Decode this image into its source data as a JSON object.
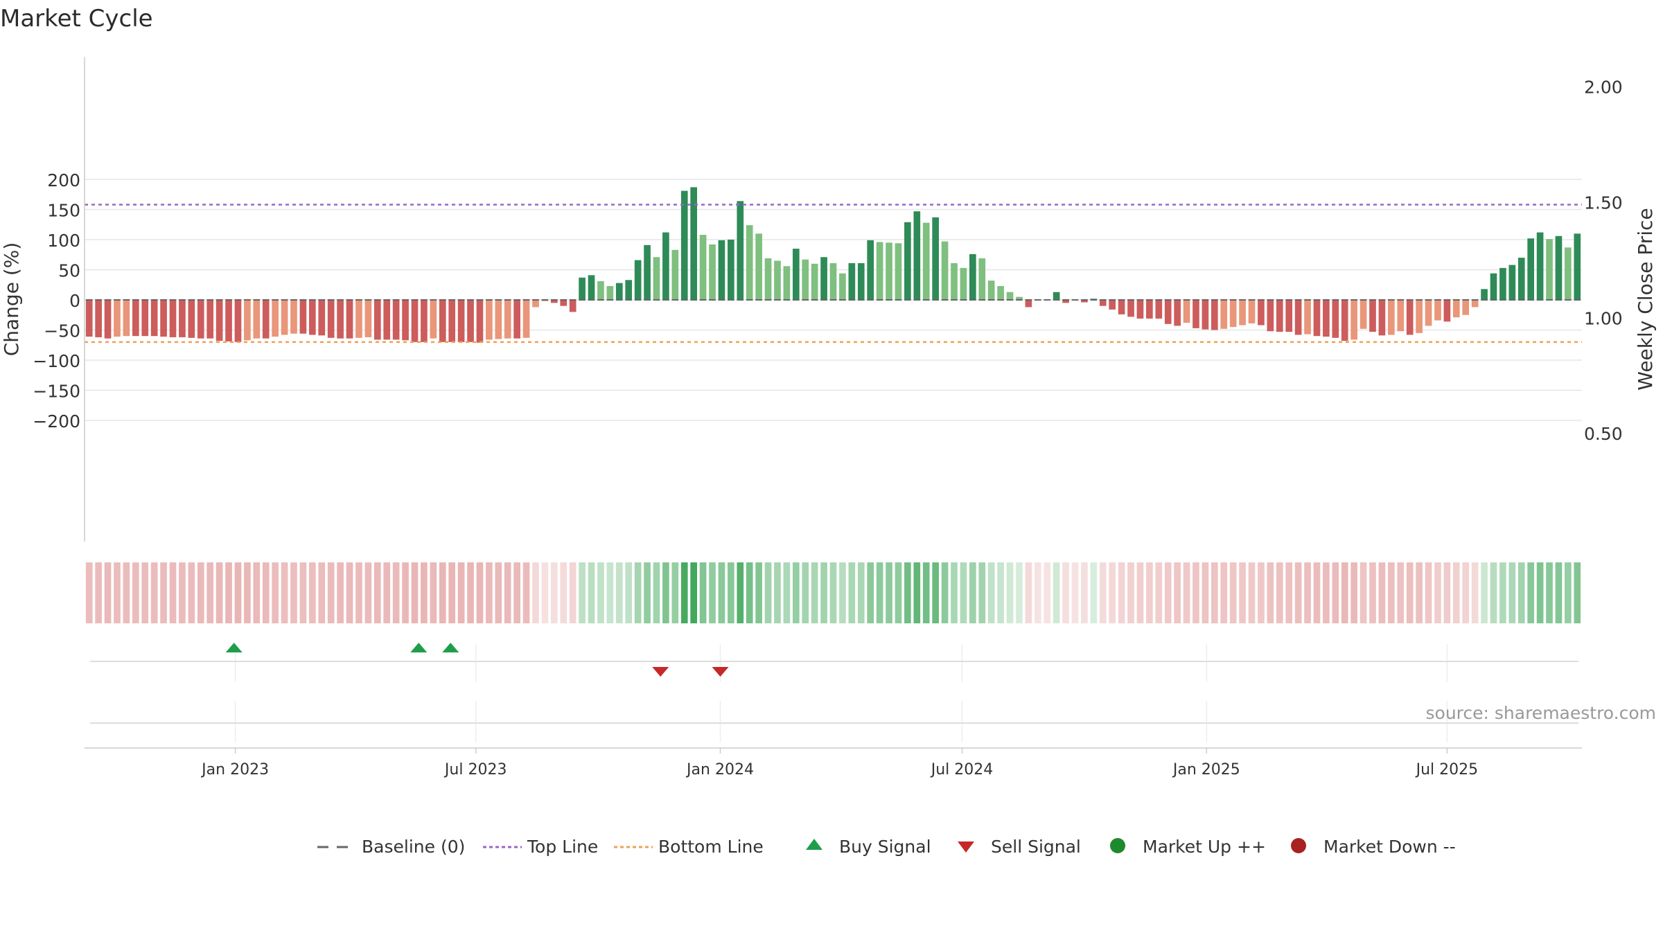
{
  "chart_data": {
    "type": "bar",
    "title": "Market Cycle",
    "ylabel": "Change (%)",
    "y2label": "Weekly Close Price",
    "ylim": [
      -200,
      200
    ],
    "yticks": [
      200,
      150,
      100,
      50,
      0,
      -50,
      -100,
      -150,
      -200
    ],
    "ytick_labels": [
      "200",
      "150",
      "100",
      "50",
      "0",
      "−50",
      "−100",
      "−150",
      "−200"
    ],
    "y2lim": [
      0.0,
      2.08
    ],
    "y2ticks": [
      2.0,
      1.5,
      1.0,
      0.5
    ],
    "y2tick_labels": [
      "2.00",
      "1.50",
      "1.00",
      "0.50"
    ],
    "x_start": "2022-09-13",
    "week_days": 7,
    "xticks": [
      {
        "date": "2023-01-01",
        "label": "Jan 2023"
      },
      {
        "date": "2023-07-01",
        "label": "Jul 2023"
      },
      {
        "date": "2024-01-01",
        "label": "Jan 2024"
      },
      {
        "date": "2024-07-01",
        "label": "Jul 2024"
      },
      {
        "date": "2025-01-01",
        "label": "Jan 2025"
      },
      {
        "date": "2025-07-01",
        "label": "Jul 2025"
      }
    ],
    "top_line": 158,
    "bottom_line": -70,
    "values": [
      -61,
      -62,
      -64,
      -61,
      -60,
      -60,
      -60,
      -60,
      -61,
      -62,
      -62,
      -63,
      -64,
      -64,
      -68,
      -69,
      -70,
      -67,
      -64,
      -64,
      -61,
      -58,
      -56,
      -56,
      -58,
      -59,
      -63,
      -64,
      -64,
      -63,
      -62,
      -66,
      -66,
      -66,
      -67,
      -70,
      -70,
      -64,
      -70,
      -70,
      -70,
      -70,
      -71,
      -66,
      -65,
      -64,
      -64,
      -63,
      -12,
      -2,
      -5,
      -10,
      -20,
      37,
      41,
      31,
      23,
      28,
      33,
      66,
      91,
      71,
      112,
      83,
      181,
      187,
      108,
      92,
      99,
      100,
      164,
      124,
      110,
      69,
      65,
      56,
      85,
      67,
      60,
      71,
      61,
      44,
      61,
      61,
      99,
      96,
      95,
      94,
      129,
      147,
      128,
      137,
      97,
      61,
      53,
      76,
      69,
      32,
      23,
      13,
      5,
      -12,
      -1,
      -1,
      13,
      -5,
      -1,
      -4,
      2,
      -10,
      -16,
      -24,
      -28,
      -31,
      -31,
      -31,
      -40,
      -43,
      -38,
      -47,
      -49,
      -50,
      -48,
      -45,
      -42,
      -39,
      -42,
      -52,
      -53,
      -53,
      -58,
      -57,
      -60,
      -61,
      -63,
      -68,
      -66,
      -48,
      -53,
      -59,
      -58,
      -52,
      -58,
      -55,
      -43,
      -34,
      -36,
      -29,
      -25,
      -12,
      18,
      44,
      53,
      58,
      70,
      102,
      112,
      101,
      106,
      87,
      110
    ],
    "bar_colors": {
      "strong_down": "#cd5c5c",
      "mild_down": "#e9967a",
      "strong_up": "#2e8b57",
      "mild_up": "#7fbf7f"
    },
    "close_color": "#555555",
    "signals": {
      "buy": [
        {
          "date": "2022-12-31",
          "label": "Buy Signal"
        },
        {
          "date": "2023-05-19",
          "label": "Buy Signal"
        },
        {
          "date": "2023-06-12",
          "label": "Buy Signal"
        }
      ],
      "sell": [
        {
          "date": "2023-11-17",
          "label": "Sell Signal"
        },
        {
          "date": "2024-01-01",
          "label": "Sell Signal"
        }
      ],
      "buy_color": "#1f9e4a",
      "sell_color": "#c62828"
    },
    "heatmap": {
      "high": "#2e9e4a",
      "low": "#cf5c5c"
    },
    "source_label": "source: sharemaestro.com",
    "legend": [
      {
        "key": "baseline",
        "label": "Baseline (0)",
        "color": "#666666"
      },
      {
        "key": "top",
        "label": "Top Line",
        "color": "#9966cc"
      },
      {
        "key": "bottom",
        "label": "Bottom Line",
        "color": "#f0a050"
      },
      {
        "key": "buy",
        "label": "Buy Signal",
        "color": "#1f9e4a"
      },
      {
        "key": "sell",
        "label": "Sell Signal",
        "color": "#c62828"
      },
      {
        "key": "up",
        "label": "Market Up ++",
        "color": "#1e8a2e"
      },
      {
        "key": "down",
        "label": "Market Down --",
        "color": "#a82222"
      }
    ],
    "grid": true,
    "legend_position": "bottom-center"
  }
}
